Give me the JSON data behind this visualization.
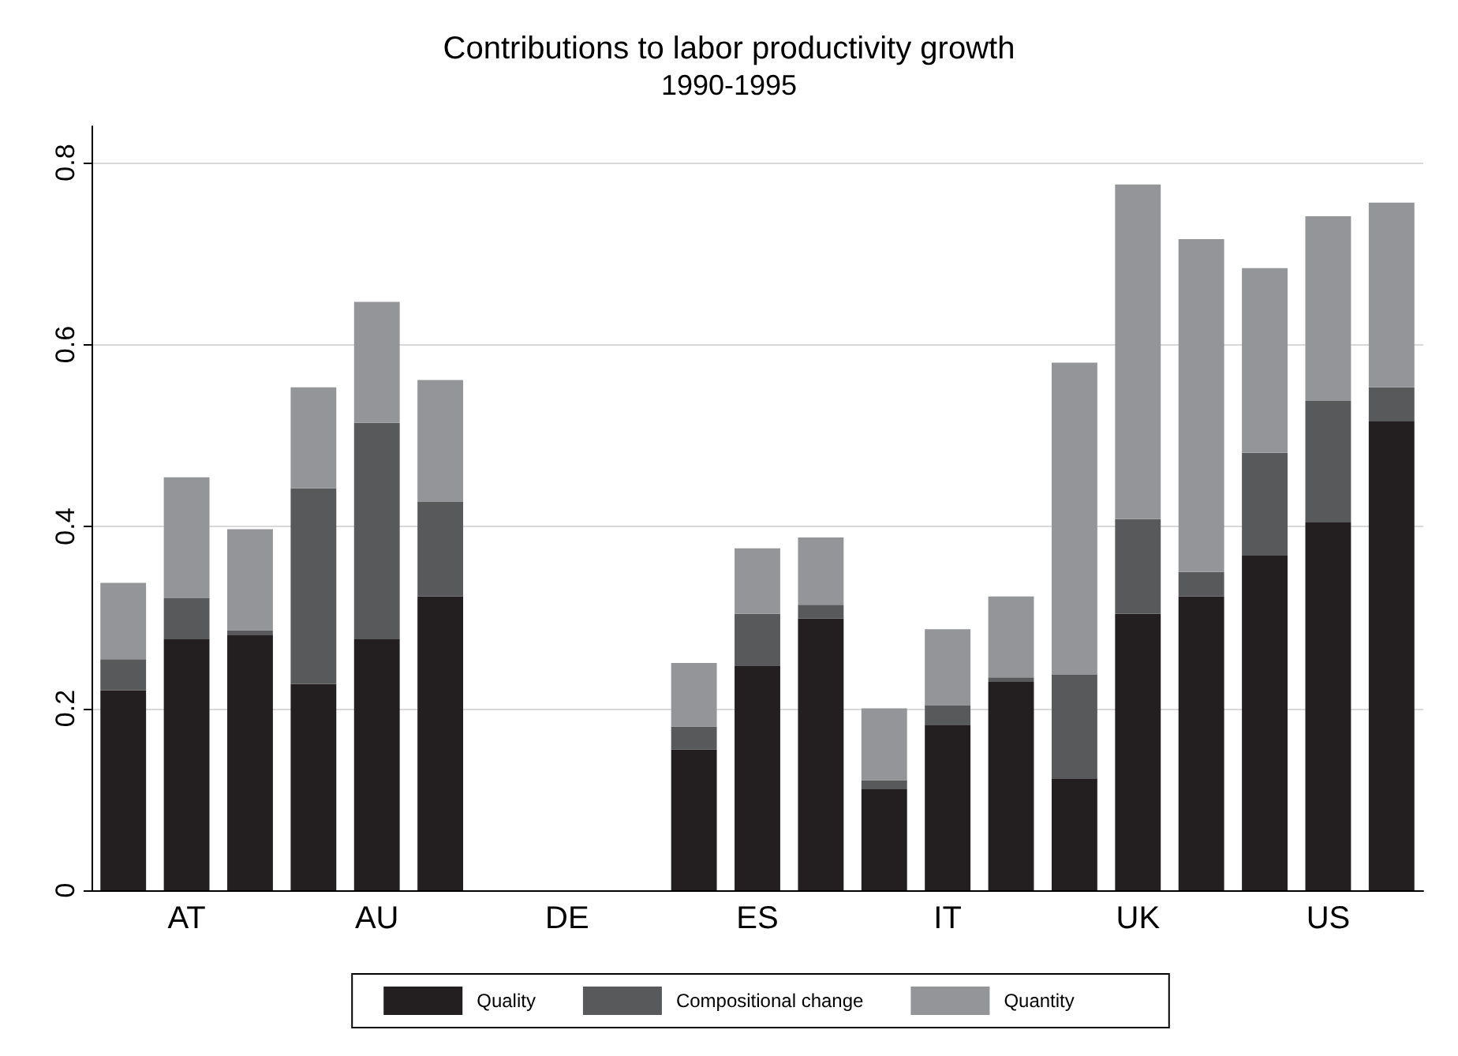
{
  "chart_data": {
    "type": "bar",
    "title": "Contributions to labor productivity growth",
    "subtitle": "1990-1995",
    "categories": [
      null,
      "AT",
      null,
      null,
      "AU",
      null,
      null,
      "DE",
      null,
      null,
      "ES",
      null,
      null,
      "IT",
      null,
      null,
      "UK",
      null,
      null,
      "US",
      null
    ],
    "stacked": true,
    "series": [
      {
        "name": "Quality",
        "color": "#231f20",
        "values": [
          0.22,
          0.276,
          0.281,
          0.227,
          0.276,
          0.323,
          null,
          null,
          null,
          0.155,
          0.247,
          0.299,
          0.111,
          0.182,
          0.229,
          0.123,
          0.304,
          0.323,
          0.368,
          0.405,
          0.516
        ]
      },
      {
        "name": "Compositional change",
        "color": "#58595b",
        "values": [
          0.034,
          0.045,
          0.005,
          0.215,
          0.238,
          0.104,
          null,
          null,
          null,
          0.025,
          0.057,
          0.015,
          0.01,
          0.021,
          0.005,
          0.114,
          0.104,
          0.027,
          0.113,
          0.133,
          0.037
        ]
      },
      {
        "name": "Quantity",
        "color": "#939598",
        "values": [
          0.084,
          0.133,
          0.111,
          0.111,
          0.133,
          0.134,
          null,
          null,
          null,
          0.07,
          0.072,
          0.074,
          0.079,
          0.084,
          0.089,
          0.343,
          0.368,
          0.366,
          0.203,
          0.203,
          0.203
        ]
      }
    ],
    "ylim": [
      0,
      0.84
    ],
    "yticks": [
      0,
      0.2,
      0.4,
      0.6,
      0.8
    ],
    "grid": "y",
    "legend": "bottom"
  }
}
